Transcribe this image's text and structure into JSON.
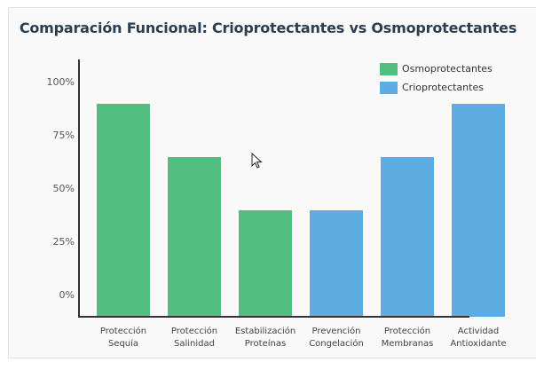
{
  "chart_data": {
    "type": "bar",
    "title": "Comparación Funcional: Crioprotectantes vs Osmoprotectantes",
    "xlabel": "",
    "ylabel": "",
    "ylim": [
      0,
      100
    ],
    "yticks": [
      "0%",
      "25%",
      "50%",
      "75%",
      "100%"
    ],
    "grid": false,
    "legend_position": "top-right",
    "categories": [
      [
        "Protección",
        "Sequía"
      ],
      [
        "Protección",
        "Salinidad"
      ],
      [
        "Estabilización",
        "Proteínas"
      ],
      [
        "Prevención",
        "Congelación"
      ],
      [
        "Protección",
        "Membranas"
      ],
      [
        "Actividad",
        "Antioxidante"
      ]
    ],
    "values": [
      90,
      65,
      40,
      40,
      65,
      90
    ],
    "bar_series": [
      "Osmoprotectantes",
      "Osmoprotectantes",
      "Osmoprotectantes",
      "Crioprotectantes",
      "Crioprotectantes",
      "Crioprotectantes"
    ],
    "series": [
      {
        "name": "Osmoprotectantes",
        "color": "#52be80",
        "values": [
          90,
          65,
          40,
          null,
          null,
          null
        ]
      },
      {
        "name": "Crioprotectantes",
        "color": "#5dade2",
        "values": [
          null,
          null,
          null,
          40,
          65,
          90
        ]
      }
    ]
  },
  "legend": {
    "items": [
      {
        "label": "Osmoprotectantes",
        "color": "#52be80"
      },
      {
        "label": "Crioprotectantes",
        "color": "#5dade2"
      }
    ]
  },
  "colors": {
    "osmo": "#52be80",
    "crio": "#5dade2",
    "title": "#2c3e50",
    "axis": "#333333"
  }
}
